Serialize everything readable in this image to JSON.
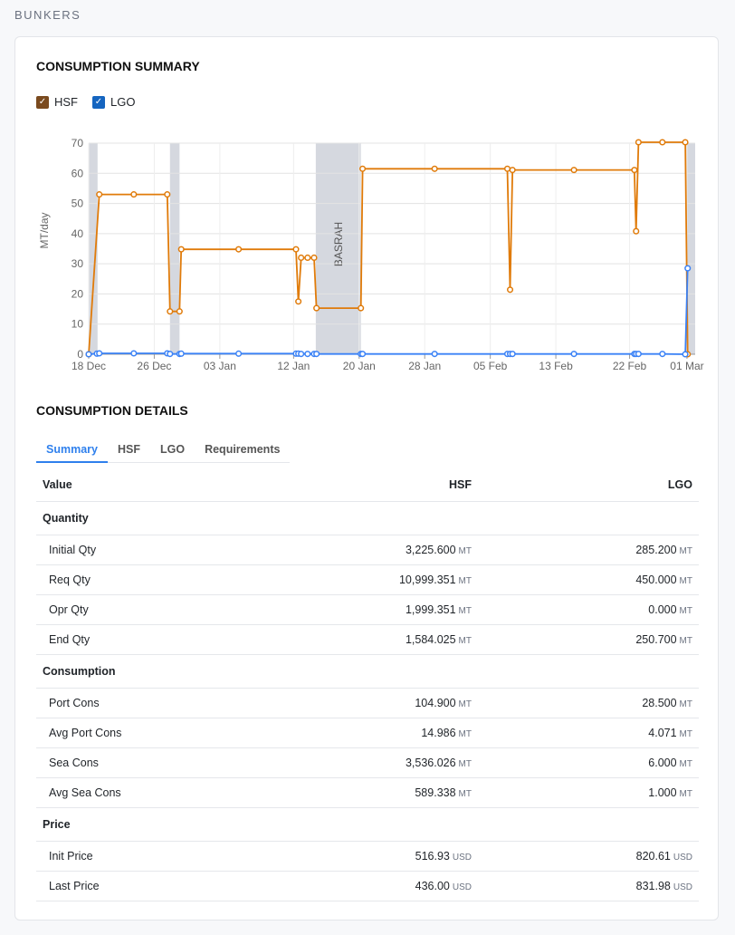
{
  "page_title": "BUNKERS",
  "summary": {
    "title": "CONSUMPTION SUMMARY",
    "legend": [
      {
        "label": "HSF",
        "color": "#7a4a1e"
      },
      {
        "label": "LGO",
        "color": "#1565c0"
      }
    ]
  },
  "chart_data": {
    "type": "line",
    "ylabel": "MT/day",
    "ylim": [
      0,
      70
    ],
    "yticks": [
      "0",
      "10",
      "20",
      "30",
      "40",
      "50",
      "60",
      "70"
    ],
    "xlim": [
      "18 Dec 00:00",
      "02 Mar 00:00"
    ],
    "xticks": [
      "18 Dec",
      "26 Dec",
      "03 Jan",
      "12 Jan",
      "20 Jan",
      "28 Jan",
      "05 Feb",
      "13 Feb",
      "22 Feb",
      "01 Mar"
    ],
    "grid": true,
    "colors": {
      "HSF": "#e07b0a",
      "LGO": "#3b82f6",
      "band": "#d5d8df"
    },
    "bands": [
      {
        "start": "18 Dec 00:00",
        "end": "19 Dec 02:00",
        "label": ""
      },
      {
        "start": "27 Dec 22:00",
        "end": "29 Dec 02:00",
        "label": ""
      },
      {
        "start": "14 Jan 17:00",
        "end": "20 Jan 05:00",
        "label": "BASRAH"
      },
      {
        "start": "28 Feb 22:00",
        "end": "02 Mar 00:00",
        "label": ""
      }
    ],
    "series": [
      {
        "name": "HSF",
        "x": [
          "18 Dec 00:00",
          "19 Dec 07:00",
          "23 Dec 12:00",
          "27 Dec 14:00",
          "27 Dec 22:00",
          "29 Dec 02:00",
          "29 Dec 07:00",
          "05 Jan 07:00",
          "12 Jan 07:00",
          "12 Jan 14:00",
          "12 Jan 22:00",
          "13 Jan 17:00",
          "14 Jan 12:00",
          "14 Jan 19:00",
          "20 Jan 05:00",
          "20 Jan 10:00",
          "29 Jan 05:00",
          "07 Feb 02:00",
          "07 Feb 10:00",
          "07 Feb 17:00",
          "15 Feb 05:00",
          "22 Feb 14:00",
          "22 Feb 19:00",
          "23 Feb 02:00",
          "26 Feb 00:00",
          "28 Feb 19:00",
          "01 Mar 02:00"
        ],
        "y": [
          0,
          53,
          53,
          53,
          14.2,
          14.2,
          34.8,
          34.8,
          34.8,
          17.5,
          32,
          32,
          32,
          15.3,
          15.3,
          61.5,
          61.5,
          61.5,
          21.4,
          61.1,
          61.1,
          61.1,
          40.8,
          70.3,
          70.3,
          70.3,
          0
        ]
      },
      {
        "name": "LGO",
        "x": [
          "18 Dec 00:00",
          "19 Dec 00:00",
          "19 Dec 07:00",
          "23 Dec 12:00",
          "27 Dec 14:00",
          "27 Dec 22:00",
          "29 Dec 02:00",
          "29 Dec 07:00",
          "05 Jan 07:00",
          "12 Jan 07:00",
          "12 Jan 14:00",
          "12 Jan 22:00",
          "13 Jan 17:00",
          "14 Jan 12:00",
          "14 Jan 19:00",
          "20 Jan 05:00",
          "20 Jan 10:00",
          "29 Jan 05:00",
          "07 Feb 02:00",
          "07 Feb 10:00",
          "07 Feb 17:00",
          "15 Feb 05:00",
          "22 Feb 14:00",
          "22 Feb 19:00",
          "23 Feb 02:00",
          "26 Feb 00:00",
          "28 Feb 19:00",
          "01 Mar 02:00"
        ],
        "y": [
          0,
          0.2,
          0.3,
          0.3,
          0.3,
          0.1,
          0.1,
          0.2,
          0.2,
          0.2,
          0.2,
          0.1,
          0.1,
          0.1,
          0.1,
          0.1,
          0.1,
          0.1,
          0.1,
          0.1,
          0.1,
          0.1,
          0.1,
          0.1,
          0.1,
          0.1,
          0,
          28.5
        ]
      }
    ]
  },
  "details": {
    "title": "CONSUMPTION DETAILS",
    "tabs": [
      "Summary",
      "HSF",
      "LGO",
      "Requirements"
    ],
    "columns": [
      "Value",
      "HSF",
      "LGO"
    ],
    "sections": [
      {
        "title": "Quantity",
        "rows": [
          {
            "label": "Initial Qty",
            "hsf": "3,225.600",
            "lgo": "285.200",
            "unit": "MT"
          },
          {
            "label": "Req Qty",
            "hsf": "10,999.351",
            "lgo": "450.000",
            "unit": "MT"
          },
          {
            "label": "Opr Qty",
            "hsf": "1,999.351",
            "lgo": "0.000",
            "unit": "MT"
          },
          {
            "label": "End Qty",
            "hsf": "1,584.025",
            "lgo": "250.700",
            "unit": "MT"
          }
        ]
      },
      {
        "title": "Consumption",
        "rows": [
          {
            "label": "Port Cons",
            "hsf": "104.900",
            "lgo": "28.500",
            "unit": "MT"
          },
          {
            "label": "Avg Port Cons",
            "hsf": "14.986",
            "lgo": "4.071",
            "unit": "MT"
          },
          {
            "label": "Sea Cons",
            "hsf": "3,536.026",
            "lgo": "6.000",
            "unit": "MT"
          },
          {
            "label": "Avg Sea Cons",
            "hsf": "589.338",
            "lgo": "1.000",
            "unit": "MT"
          }
        ]
      },
      {
        "title": "Price",
        "rows": [
          {
            "label": "Init Price",
            "hsf": "516.93",
            "lgo": "820.61",
            "unit": "USD"
          },
          {
            "label": "Last Price",
            "hsf": "436.00",
            "lgo": "831.98",
            "unit": "USD"
          }
        ]
      }
    ]
  }
}
